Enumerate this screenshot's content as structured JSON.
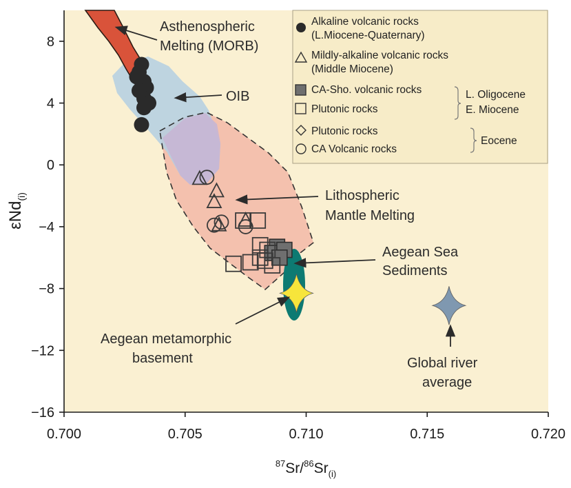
{
  "chart_data": {
    "type": "scatter",
    "title": "",
    "xlabel": {
      "sup1": "87",
      "m1": "Sr/",
      "sup2": "86",
      "m2": "Sr",
      "sub": "(i)"
    },
    "ylabel": {
      "main": "εNd",
      "sub": "(i)"
    },
    "xlim": [
      0.7,
      0.72
    ],
    "ylim": [
      -16,
      10
    ],
    "x_ticks": [
      0.7,
      0.705,
      0.71,
      0.715,
      0.72
    ],
    "x_tick_labels": [
      "0.700",
      "0.705",
      "0.710",
      "0.715",
      "0.720"
    ],
    "y_ticks": [
      8,
      4,
      0,
      -4,
      -8,
      -12,
      -16
    ],
    "y_tick_labels": [
      "8",
      "4",
      "0",
      "−4",
      "−8",
      "−12",
      "−16"
    ],
    "grid": false,
    "legend_position": "top-right",
    "legend": {
      "entries": [
        {
          "marker": "filled-circle",
          "line1": "Alkaline volcanic rocks",
          "line2": "(L.Miocene-Quaternary)"
        },
        {
          "marker": "open-triangle",
          "line1": "Mildly-alkaline volcanic rocks",
          "line2": "(Middle Miocene)"
        },
        {
          "marker": "filled-square",
          "line1": "CA-Sho. volcanic rocks"
        },
        {
          "marker": "open-square",
          "line1": "Plutonic rocks"
        },
        {
          "marker": "open-diamond",
          "line1": "Plutonic rocks"
        },
        {
          "marker": "open-circle",
          "line1": "CA Volcanic rocks"
        }
      ],
      "group_labels": {
        "oligocene_1": "L.  Oligocene",
        "oligocene_2": "E. Miocene",
        "eocene": "Eocene"
      }
    },
    "annotations": {
      "morb_1": "Asthenospheric",
      "morb_2": "Melting (MORB)",
      "oib": "OIB",
      "litho_1": "Lithospheric",
      "litho_2": "Mantle Melting",
      "aegean_sed_1": "Aegean Sea",
      "aegean_sed_2": "Sediments",
      "basement_1": "Aegean metamorphic",
      "basement_2": "basement",
      "river_1": "Global river",
      "river_2": "average"
    },
    "fields": [
      {
        "name": "Asthenospheric Melting (MORB)",
        "color": "#d9533a"
      },
      {
        "name": "OIB",
        "color": "#b3cfe3"
      },
      {
        "name": "Lithospheric Mantle Melting",
        "color": "#f2b9a8"
      },
      {
        "name": "Aegean Sea Sediments",
        "color": "#0d7a72"
      }
    ],
    "stars": [
      {
        "name": "Aegean metamorphic basement",
        "x": 0.7096,
        "y": -8.3,
        "color": "#f7e53b"
      },
      {
        "name": "Global river average",
        "x": 0.7159,
        "y": -9.1,
        "color": "#7f98b0"
      }
    ],
    "series": [
      {
        "name": "Alkaline volcanic rocks (L.Miocene-Quaternary)",
        "marker": "filled-circle",
        "points": [
          [
            0.7032,
            6.5
          ],
          [
            0.7031,
            6.0
          ],
          [
            0.703,
            5.7
          ],
          [
            0.7033,
            5.4
          ],
          [
            0.7034,
            5.0
          ],
          [
            0.7031,
            4.8
          ],
          [
            0.7033,
            4.3
          ],
          [
            0.7035,
            4.0
          ],
          [
            0.7033,
            3.7
          ],
          [
            0.7032,
            2.6
          ]
        ]
      },
      {
        "name": "Mildly-alkaline volcanic rocks (Middle Miocene)",
        "marker": "open-triangle",
        "points": [
          [
            0.7056,
            -0.9
          ],
          [
            0.7063,
            -1.7
          ],
          [
            0.7062,
            -2.4
          ],
          [
            0.7064,
            -3.9
          ],
          [
            0.7075,
            -3.6
          ]
        ]
      },
      {
        "name": "CA-Sho. volcanic rocks",
        "marker": "filled-square",
        "points": [
          [
            0.7088,
            -5.3
          ],
          [
            0.7086,
            -5.7
          ],
          [
            0.7091,
            -5.5
          ],
          [
            0.7089,
            -6.0
          ]
        ]
      },
      {
        "name": "Plutonic rocks (L. Oligocene - E. Miocene)",
        "marker": "open-square",
        "points": [
          [
            0.7074,
            -3.6
          ],
          [
            0.708,
            -3.6
          ],
          [
            0.7081,
            -5.2
          ],
          [
            0.7084,
            -5.5
          ],
          [
            0.7081,
            -6.0
          ],
          [
            0.7083,
            -6.2
          ],
          [
            0.707,
            -6.4
          ],
          [
            0.7077,
            -6.3
          ],
          [
            0.7086,
            -6.5
          ]
        ]
      },
      {
        "name": "Plutonic rocks (Eocene)",
        "marker": "open-diamond",
        "points": []
      },
      {
        "name": "CA Volcanic rocks (Eocene)",
        "marker": "open-circle",
        "points": [
          [
            0.7059,
            -0.8
          ],
          [
            0.7062,
            -3.9
          ],
          [
            0.7065,
            -3.7
          ],
          [
            0.7075,
            -4.0
          ]
        ]
      }
    ]
  }
}
